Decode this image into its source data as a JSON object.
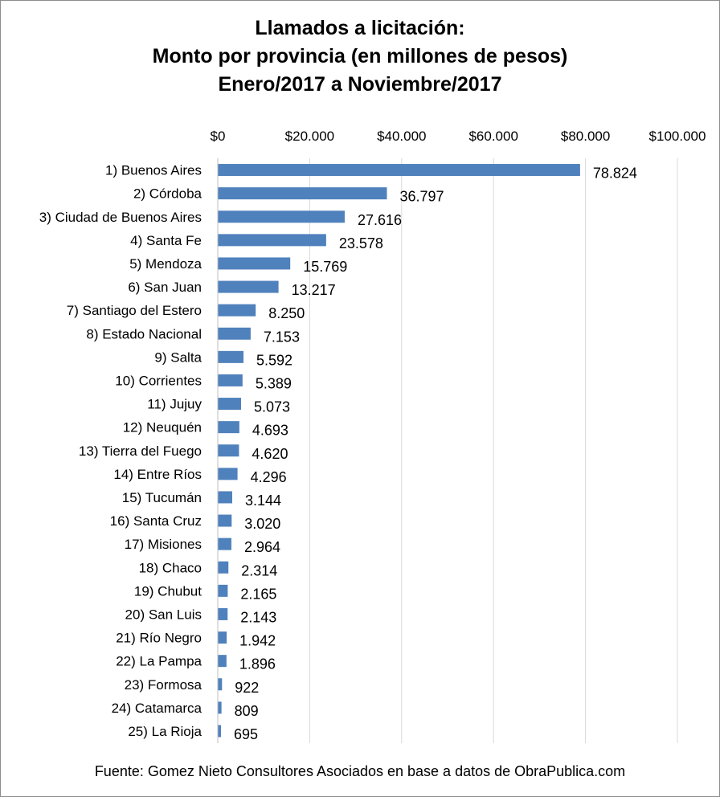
{
  "chart_data": {
    "type": "bar",
    "orientation": "horizontal",
    "title_lines": [
      "Llamados a licitación:",
      "Monto por provincia (en millones de pesos)",
      "Enero/2017 a Noviembre/2017"
    ],
    "categories": [
      "1) Buenos Aires",
      "2) Córdoba",
      "3) Ciudad de Buenos Aires",
      "4) Santa Fe",
      "5) Mendoza",
      "6) San Juan",
      "7) Santiago del Estero",
      "8) Estado Nacional",
      "9) Salta",
      "10) Corrientes",
      "11) Jujuy",
      "12) Neuquén",
      "13) Tierra del Fuego",
      "14) Entre Ríos",
      "15) Tucumán",
      "16) Santa Cruz",
      "17) Misiones",
      "18) Chaco",
      "19) Chubut",
      "20) San Luis",
      "21) Río Negro",
      "22) La Pampa",
      "23) Formosa",
      "24) Catamarca",
      "25) La Rioja"
    ],
    "values": [
      78824,
      36797,
      27616,
      23578,
      15769,
      13217,
      8250,
      7153,
      5592,
      5389,
      5073,
      4693,
      4620,
      4296,
      3144,
      3020,
      2964,
      2314,
      2165,
      2143,
      1942,
      1896,
      922,
      809,
      695
    ],
    "value_labels": [
      "78.824",
      "36.797",
      "27.616",
      "23.578",
      "15.769",
      "13.217",
      "8.250",
      "7.153",
      "5.592",
      "5.389",
      "5.073",
      "4.693",
      "4.620",
      "4.296",
      "3.144",
      "3.020",
      "2.964",
      "2.314",
      "2.165",
      "2.143",
      "1.942",
      "1.896",
      "922",
      "809",
      "695"
    ],
    "x_ticks": [
      0,
      20000,
      40000,
      60000,
      80000,
      100000
    ],
    "x_tick_labels": [
      "$0",
      "$20.000",
      "$40.000",
      "$60.000",
      "$80.000",
      "$100.000"
    ],
    "xlim": [
      0,
      100000
    ],
    "x_axis_position": "top",
    "grid": true,
    "bar_color": "#4f81bd",
    "grid_color": "#d9d9d9",
    "source": "Fuente: Gomez Nieto Consultores Asociados en base a datos de ObraPublica.com"
  }
}
